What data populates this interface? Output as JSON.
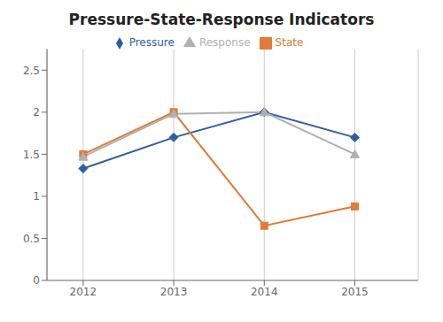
{
  "chart_data": {
    "type": "line",
    "title": "Pressure-State-Response Indicators",
    "x": [
      2012,
      2013,
      2014,
      2015
    ],
    "series": [
      {
        "name": "Pressure",
        "color": "#2E5FA3",
        "marker": "diamond",
        "values": [
          1.33,
          1.7,
          2.0,
          1.7
        ]
      },
      {
        "name": "State",
        "color": "#E07B39",
        "marker": "square",
        "values": [
          1.5,
          2.0,
          0.65,
          0.88
        ]
      },
      {
        "name": "Response",
        "color": "#B0B0B0",
        "marker": "triangle",
        "values": [
          1.47,
          1.98,
          2.0,
          1.5
        ]
      }
    ],
    "xlim": [
      2011.6,
      2015.7
    ],
    "xticks": [
      2012,
      2013,
      2014,
      2015
    ],
    "ylim": [
      0,
      2.75
    ],
    "yticks": [
      0,
      0.5,
      1.0,
      1.5,
      2.0,
      2.5
    ],
    "grid": true,
    "legend": "top"
  }
}
